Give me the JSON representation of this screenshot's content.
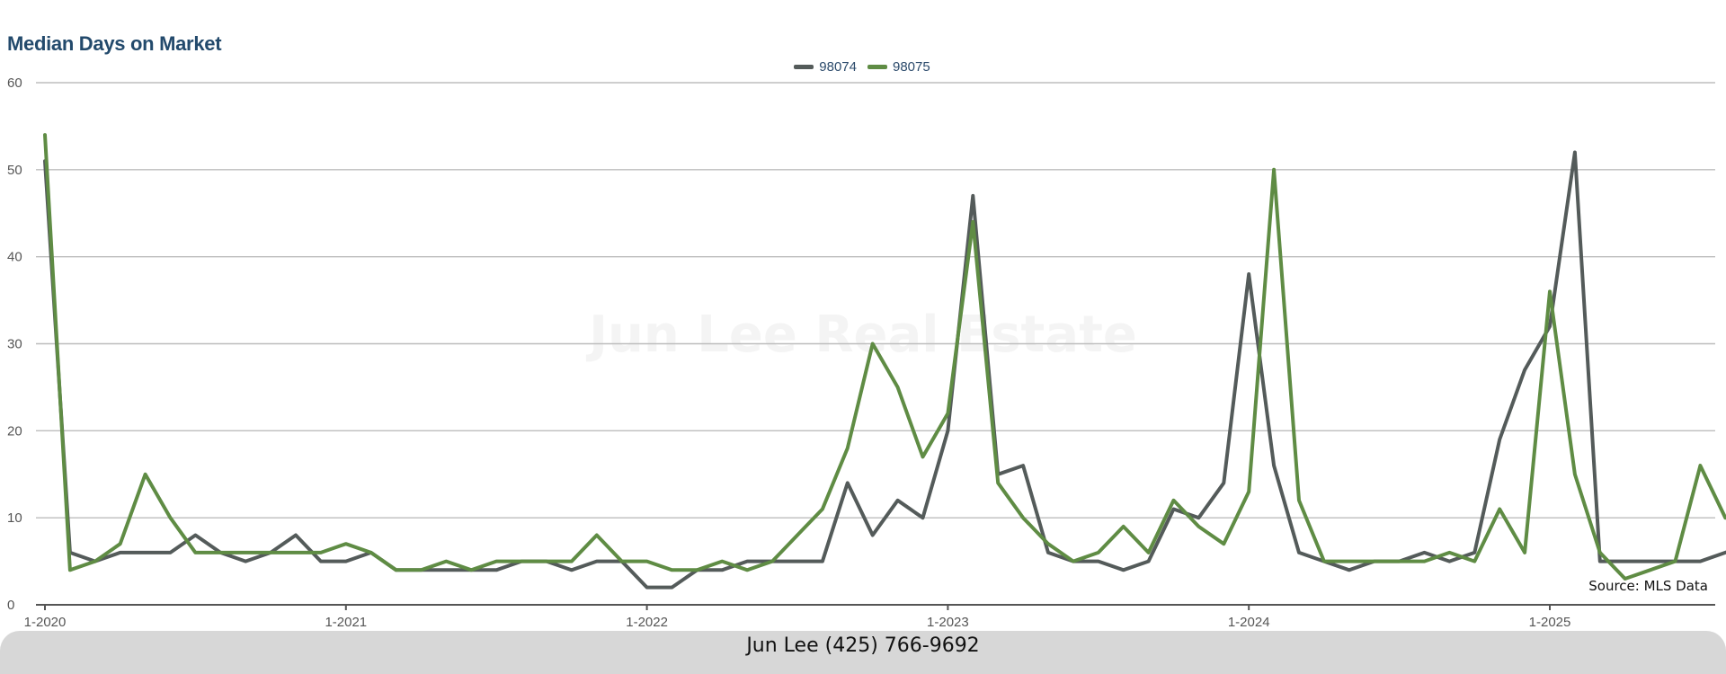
{
  "chart_data": {
    "type": "line",
    "title": "Median Days on Market",
    "watermark": "Jun Lee Real Estate",
    "source": "Source: MLS Data",
    "footer": "Jun Lee (425) 766-9692",
    "ylim": [
      0,
      60
    ],
    "yticks": [
      "0",
      "10",
      "20",
      "30",
      "40",
      "50",
      "60"
    ],
    "grid": true,
    "legend_position": "top-center",
    "xticks": [
      {
        "label": "1-2020",
        "index": 0
      },
      {
        "label": "1-2021",
        "index": 12
      },
      {
        "label": "1-2022",
        "index": 24
      },
      {
        "label": "1-2023",
        "index": 36
      },
      {
        "label": "1-2024",
        "index": 48
      },
      {
        "label": "1-2025",
        "index": 60
      }
    ],
    "x_start": "2020-01",
    "x_interval": "month",
    "series": [
      {
        "name": "98074",
        "color": "#545b5a",
        "values": [
          51,
          6,
          5,
          6,
          6,
          6,
          8,
          6,
          5,
          6,
          8,
          5,
          5,
          6,
          4,
          4,
          4,
          4,
          4,
          5,
          5,
          4,
          5,
          5,
          2,
          2,
          4,
          4,
          5,
          5,
          5,
          5,
          14,
          8,
          12,
          10,
          20,
          47,
          15,
          16,
          6,
          5,
          5,
          4,
          5,
          11,
          10,
          14,
          38,
          16,
          6,
          5,
          4,
          5,
          5,
          6,
          5,
          6,
          19,
          27,
          32,
          52,
          5,
          5,
          5,
          5,
          5,
          6,
          7
        ]
      },
      {
        "name": "98075",
        "color": "#5f8c44",
        "values": [
          54,
          4,
          5,
          7,
          15,
          10,
          6,
          6,
          6,
          6,
          6,
          6,
          7,
          6,
          4,
          4,
          5,
          4,
          5,
          5,
          5,
          5,
          8,
          5,
          5,
          4,
          4,
          5,
          4,
          5,
          8,
          11,
          18,
          30,
          25,
          17,
          22,
          44,
          14,
          10,
          7,
          5,
          6,
          9,
          6,
          12,
          9,
          7,
          13,
          50,
          12,
          5,
          5,
          5,
          5,
          5,
          6,
          5,
          11,
          6,
          36,
          15,
          6,
          3,
          4,
          5,
          16,
          10
        ]
      }
    ]
  }
}
